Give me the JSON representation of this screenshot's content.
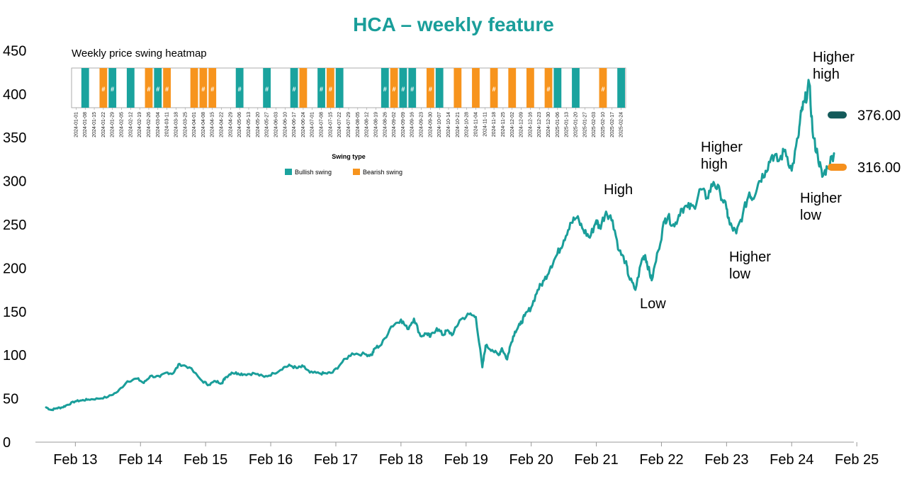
{
  "chart_data": [
    {
      "type": "line",
      "title": "HCA – weekly feature",
      "color": "#1a9e9a",
      "ylim": [
        0,
        450
      ],
      "yticks": [
        "0",
        "50",
        "100",
        "150",
        "200",
        "250",
        "300",
        "350",
        "400",
        "450"
      ],
      "xticks": [
        "Feb 13",
        "Feb 14",
        "Feb 15",
        "Feb 16",
        "Feb 17",
        "Feb 18",
        "Feb 19",
        "Feb 20",
        "Feb 21",
        "Feb 22",
        "Feb 23",
        "Feb 24",
        "Feb 25"
      ],
      "series": [
        {
          "x": [
            0.0,
            0.08,
            0.16,
            0.25,
            0.33,
            0.45,
            0.55,
            0.65,
            0.8,
            0.95,
            1.1,
            1.25,
            1.4,
            1.5,
            1.6,
            1.75,
            1.85,
            1.95,
            2.05,
            2.2,
            2.4,
            2.5,
            2.6,
            2.7,
            2.75,
            2.85,
            2.95,
            3.05,
            3.2,
            3.35,
            3.5,
            3.65,
            3.75,
            3.85,
            3.95,
            4.05,
            4.2,
            4.3,
            4.4,
            4.55,
            4.7,
            4.9,
            5.0,
            5.05,
            5.15,
            5.3,
            5.45,
            5.55,
            5.65,
            5.75,
            5.85,
            5.9,
            6.0,
            6.1,
            6.15,
            6.25,
            6.35,
            6.5,
            6.6,
            6.7,
            6.75,
            6.85,
            6.95,
            7.0,
            7.08,
            7.12,
            7.2,
            7.28,
            7.35,
            7.45,
            7.55,
            7.65,
            7.75,
            7.85,
            7.95,
            8.05,
            8.15,
            8.25,
            8.35,
            8.45,
            8.5,
            8.6,
            8.7,
            8.8,
            8.9,
            8.95,
            9.05,
            9.15,
            9.2,
            9.25,
            9.3,
            9.4,
            9.5,
            9.55,
            9.65,
            9.75,
            9.85,
            9.95,
            10.05,
            10.15,
            10.25,
            10.35,
            10.45,
            10.5,
            10.6,
            10.7,
            10.8,
            10.85,
            10.95,
            11.05,
            11.15,
            11.25,
            11.35,
            11.45,
            11.55,
            11.6,
            11.65,
            11.72,
            11.78,
            11.85,
            11.92,
            12.0,
            12.1
          ],
          "y": [
            40,
            37,
            39,
            40,
            43,
            47,
            48,
            49,
            50,
            52,
            58,
            70,
            73,
            68,
            76,
            75,
            80,
            79,
            90,
            86,
            70,
            66,
            70,
            68,
            74,
            80,
            79,
            78,
            79,
            75,
            79,
            86,
            88,
            85,
            87,
            80,
            79,
            79,
            80,
            92,
            102,
            101,
            100,
            108,
            112,
            133,
            141,
            130,
            142,
            122,
            125,
            121,
            131,
            123,
            128,
            124,
            140,
            147,
            144,
            86,
            111,
            106,
            100,
            108,
            95,
            109,
            127,
            135,
            145,
            155,
            175,
            186,
            202,
            216,
            232,
            252,
            258,
            244,
            235,
            255,
            246,
            265,
            255,
            220,
            207,
            190,
            175,
            210,
            215,
            200,
            186,
            220,
            255,
            259,
            248,
            268,
            270,
            270,
            291,
            281,
            299,
            287,
            268,
            250,
            240,
            262,
            287,
            280,
            300,
            312,
            330,
            323,
            336,
            312,
            350,
            380,
            391,
            412,
            350,
            330,
            305,
            316,
            332
          ]
        }
      ],
      "annotations": [
        {
          "lines": [
            "High"
          ]
        },
        {
          "lines": [
            "Low"
          ]
        },
        {
          "lines": [
            "Higher",
            "high"
          ]
        },
        {
          "lines": [
            "Higher",
            "low"
          ]
        },
        {
          "lines": [
            "Higher",
            "high"
          ]
        },
        {
          "lines": [
            "Higher",
            "low"
          ]
        }
      ],
      "levels": [
        {
          "value": 376.0,
          "label": "376.00",
          "color": "#145a5a"
        },
        {
          "value": 316.0,
          "label": "316.00",
          "color": "#f5901e"
        }
      ]
    },
    {
      "type": "heatmap",
      "title": "Weekly price swing heatmap",
      "legend_title": "Swing type",
      "legend": [
        {
          "label": "Bullish swing",
          "color": "#1aa39e"
        },
        {
          "label": "Bearish swing",
          "color": "#f7941d"
        }
      ],
      "dates": [
        "2024-01-01",
        "2024-01-08",
        "2024-01-15",
        "2024-01-22",
        "2024-01-29",
        "2024-02-05",
        "2024-02-12",
        "2024-02-19",
        "2024-02-26",
        "2024-03-04",
        "2024-03-11",
        "2024-03-18",
        "2024-03-25",
        "2024-04-01",
        "2024-04-08",
        "2024-04-15",
        "2024-04-22",
        "2024-04-29",
        "2024-05-06",
        "2024-05-13",
        "2024-05-20",
        "2024-05-27",
        "2024-06-03",
        "2024-06-10",
        "2024-06-17",
        "2024-06-24",
        "2024-07-01",
        "2024-07-08",
        "2024-07-15",
        "2024-07-22",
        "2024-07-29",
        "2024-08-05",
        "2024-08-12",
        "2024-08-19",
        "2024-08-26",
        "2024-09-02",
        "2024-09-09",
        "2024-09-16",
        "2024-09-23",
        "2024-09-30",
        "2024-10-07",
        "2024-10-14",
        "2024-10-21",
        "2024-10-28",
        "2024-11-04",
        "2024-11-11",
        "2024-11-18",
        "2024-11-25",
        "2024-12-02",
        "2024-12-09",
        "2024-12-16",
        "2024-12-23",
        "2024-12-30",
        "2025-01-06",
        "2025-01-13",
        "2025-01-20",
        "2025-01-27",
        "2025-02-03",
        "2025-02-10",
        "2025-02-17",
        "2025-02-24"
      ],
      "cells": [
        "",
        "B",
        "",
        "S",
        "B",
        "",
        "B",
        "",
        "S",
        "B",
        "S",
        "",
        "",
        "S",
        "S",
        "S",
        "",
        "",
        "B",
        "",
        "",
        "B",
        "",
        "",
        "B",
        "S",
        "",
        "B",
        "S",
        "B",
        "",
        "",
        "",
        "",
        "B",
        "S",
        "B",
        "B",
        "",
        "S",
        "B",
        "",
        "S",
        "",
        "S",
        "",
        "S",
        "",
        "S",
        "",
        "S",
        "",
        "S",
        "B",
        "",
        "B",
        "",
        "",
        "S",
        "",
        "B"
      ],
      "hash_label": "#",
      "hash": [
        3,
        4,
        8,
        9,
        10,
        14,
        15,
        18,
        21,
        24,
        27,
        28,
        34,
        35,
        36,
        37,
        39,
        46,
        52,
        58
      ]
    }
  ]
}
